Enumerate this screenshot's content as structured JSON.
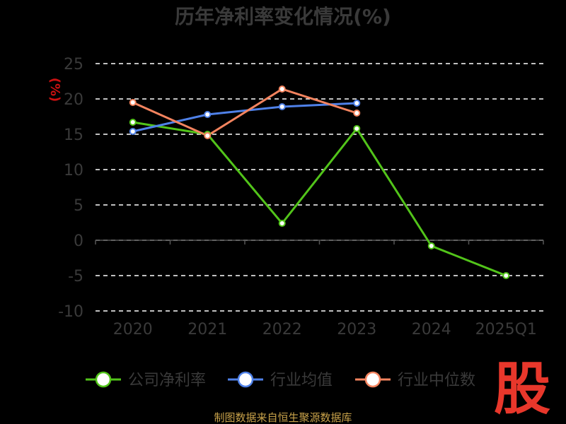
{
  "chart_data": {
    "type": "line",
    "title": "历年净利率变化情况(%)",
    "ylabel": "(%)",
    "categories": [
      "2020",
      "2021",
      "2022",
      "2023",
      "2024",
      "2025Q1"
    ],
    "ylim": [
      -10,
      25
    ],
    "yticks": [
      25,
      20,
      15,
      10,
      5,
      0,
      -5,
      -10
    ],
    "grid": true,
    "legend_position": "bottom",
    "series": [
      {
        "name": "公司净利率",
        "color": "#52c41a",
        "values": [
          16.7,
          15.0,
          2.4,
          15.8,
          -0.8,
          -5.0
        ]
      },
      {
        "name": "行业均值",
        "color": "#4f81e8",
        "values": [
          15.4,
          17.8,
          18.9,
          19.4,
          null,
          null
        ]
      },
      {
        "name": "行业中位数",
        "color": "#f4845f",
        "values": [
          19.5,
          14.8,
          21.4,
          18.0,
          null,
          null
        ]
      }
    ]
  },
  "source": "制图数据来自恒生聚源数据库",
  "logo_text": "股"
}
